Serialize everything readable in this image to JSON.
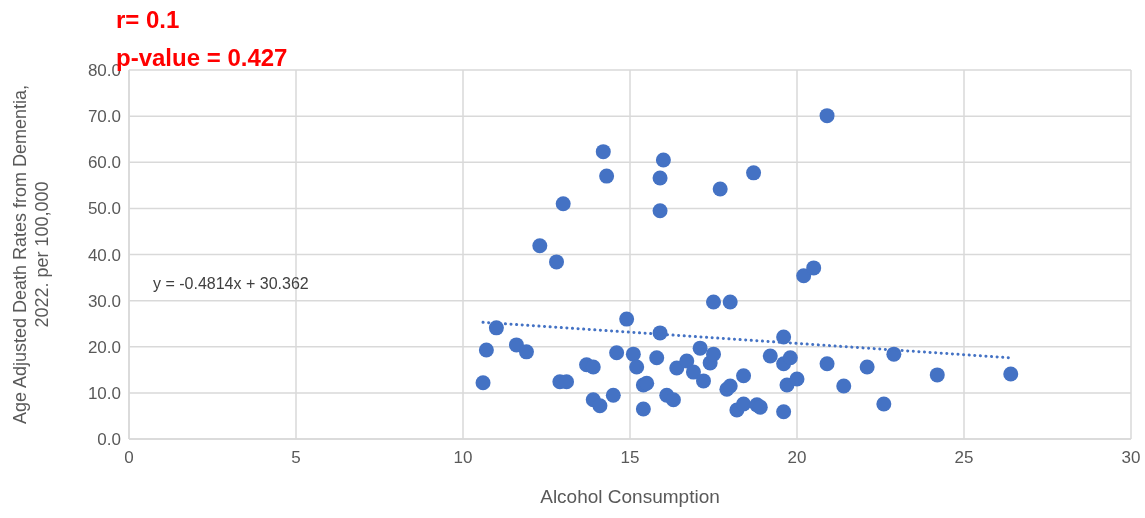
{
  "chart_data": {
    "type": "scatter",
    "xlabel": "Alcohol Consumption",
    "ylabel": "Age Adjusted Death Rates from  Dementia, 2022. per 100,000",
    "annotations": [
      "r= 0.1",
      "p-value = 0.427",
      "y = -0.4814x + 30.362"
    ],
    "xlim": [
      0,
      30
    ],
    "xticks": [
      0,
      5,
      10,
      15,
      20,
      25,
      30
    ],
    "ylim": [
      0,
      80
    ],
    "yticks": [
      {
        "value": 0,
        "label": "0.0"
      },
      {
        "value": 10,
        "label": "10.0"
      },
      {
        "value": 20,
        "label": "20.0"
      },
      {
        "value": 30,
        "label": "30.0"
      },
      {
        "value": 40,
        "label": "40.0"
      },
      {
        "value": 50,
        "label": "50.0"
      },
      {
        "value": 60,
        "label": "60.0"
      },
      {
        "value": 70,
        "label": "70.0"
      },
      {
        "value": 80,
        "label": "80.0"
      }
    ],
    "grid": true,
    "series": [
      {
        "color": "#4472c4",
        "marker": "circle",
        "x": [
          10.6,
          10.7,
          11.0,
          11.6,
          11.9,
          12.3,
          12.8,
          12.9,
          13.1,
          13.0,
          13.7,
          13.9,
          13.9,
          14.1,
          14.2,
          14.3,
          14.5,
          14.6,
          14.9,
          15.1,
          15.2,
          15.4,
          15.5,
          15.4,
          15.8,
          15.9,
          15.9,
          15.9,
          16.0,
          16.1,
          16.3,
          16.4,
          16.7,
          16.9,
          17.1,
          17.2,
          17.4,
          17.5,
          17.5,
          17.7,
          18.0,
          17.9,
          18.0,
          18.2,
          18.4,
          18.4,
          18.7,
          18.8,
          18.9,
          19.2,
          19.6,
          19.6,
          19.6,
          19.7,
          19.8,
          20.0,
          20.2,
          20.5,
          20.9,
          20.9,
          21.4,
          22.1,
          22.6,
          22.9,
          24.2,
          26.4
        ],
        "values": [
          12.2,
          19.3,
          24.1,
          20.4,
          18.9,
          41.9,
          38.4,
          12.4,
          12.4,
          51.0,
          16.1,
          15.6,
          8.5,
          7.2,
          62.3,
          57.0,
          9.5,
          18.7,
          26.0,
          18.4,
          15.6,
          11.7,
          12.1,
          6.5,
          17.6,
          23.0,
          56.6,
          49.5,
          60.5,
          9.5,
          8.5,
          15.4,
          16.9,
          14.5,
          19.7,
          12.6,
          16.5,
          18.4,
          29.7,
          54.2,
          29.7,
          10.8,
          11.5,
          6.3,
          7.6,
          13.7,
          57.7,
          7.4,
          6.9,
          18.0,
          16.3,
          22.1,
          5.9,
          11.7,
          17.6,
          13.0,
          35.4,
          37.1,
          70.1,
          16.3,
          11.5,
          15.6,
          7.6,
          18.4,
          13.9,
          14.1
        ]
      },
      {
        "type": "line",
        "color": "#4472c4",
        "line_style": "dotted",
        "x": [
          10.6,
          26.4
        ],
        "values": [
          25.3,
          17.6
        ]
      }
    ]
  }
}
